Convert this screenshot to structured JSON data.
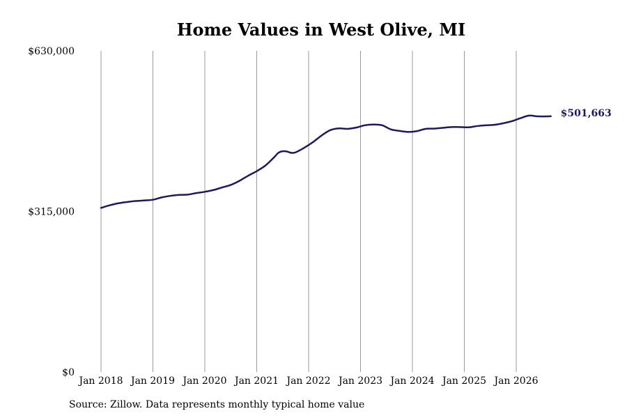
{
  "chart_data": {
    "type": "line",
    "title": "Home Values in West Olive, MI",
    "xlabel": "",
    "ylabel": "",
    "source_note": "Source: Zillow. Data represents monthly typical home value",
    "ylim": [
      0,
      630000
    ],
    "yticks": [
      {
        "value": 0,
        "label": "$0"
      },
      {
        "value": 315000,
        "label": "$315,000"
      },
      {
        "value": 630000,
        "label": "$630,000"
      }
    ],
    "xlim": [
      "2018-01",
      "2026-09"
    ],
    "xticks": [
      {
        "date": "2018-01",
        "label": "Jan 2018"
      },
      {
        "date": "2019-01",
        "label": "Jan 2019"
      },
      {
        "date": "2020-01",
        "label": "Jan 2020"
      },
      {
        "date": "2021-01",
        "label": "Jan 2021"
      },
      {
        "date": "2022-01",
        "label": "Jan 2022"
      },
      {
        "date": "2023-01",
        "label": "Jan 2023"
      },
      {
        "date": "2024-01",
        "label": "Jan 2024"
      },
      {
        "date": "2025-01",
        "label": "Jan 2025"
      },
      {
        "date": "2026-01",
        "label": "Jan 2026"
      }
    ],
    "vertical_grid": true,
    "line_color": "#1a1a5e",
    "grid_color": "#999999",
    "end_label": "$501,663",
    "series": [
      {
        "points": [
          [
            "2018-01",
            322000
          ],
          [
            "2018-03",
            327000
          ],
          [
            "2018-05",
            331000
          ],
          [
            "2018-07",
            333500
          ],
          [
            "2018-09",
            335500
          ],
          [
            "2018-11",
            336500
          ],
          [
            "2019-01",
            338000
          ],
          [
            "2019-03",
            342500
          ],
          [
            "2019-05",
            345500
          ],
          [
            "2019-07",
            347500
          ],
          [
            "2019-09",
            348000
          ],
          [
            "2019-11",
            351000
          ],
          [
            "2020-01",
            353500
          ],
          [
            "2020-03",
            357000
          ],
          [
            "2020-05",
            362000
          ],
          [
            "2020-07",
            367000
          ],
          [
            "2020-09",
            375000
          ],
          [
            "2020-11",
            385000
          ],
          [
            "2021-01",
            394000
          ],
          [
            "2021-03",
            405000
          ],
          [
            "2021-05",
            421000
          ],
          [
            "2021-06",
            430000
          ],
          [
            "2021-07",
            433000
          ],
          [
            "2021-08",
            432500
          ],
          [
            "2021-09",
            430000
          ],
          [
            "2021-10",
            431000
          ],
          [
            "2021-12",
            440000
          ],
          [
            "2022-02",
            451000
          ],
          [
            "2022-04",
            464000
          ],
          [
            "2022-06",
            474500
          ],
          [
            "2022-08",
            478000
          ],
          [
            "2022-10",
            477000
          ],
          [
            "2022-12",
            479500
          ],
          [
            "2023-02",
            484000
          ],
          [
            "2023-04",
            485500
          ],
          [
            "2023-06",
            484000
          ],
          [
            "2023-08",
            476000
          ],
          [
            "2023-10",
            473000
          ],
          [
            "2023-12",
            471000
          ],
          [
            "2024-02",
            472500
          ],
          [
            "2024-04",
            477000
          ],
          [
            "2024-06",
            477500
          ],
          [
            "2024-08",
            479000
          ],
          [
            "2024-10",
            480500
          ],
          [
            "2024-12",
            480500
          ],
          [
            "2025-02",
            480000
          ],
          [
            "2025-04",
            482500
          ],
          [
            "2025-06",
            484000
          ],
          [
            "2025-08",
            485000
          ],
          [
            "2025-10",
            488000
          ],
          [
            "2025-12",
            492000
          ],
          [
            "2026-02",
            498000
          ],
          [
            "2026-04",
            503000
          ],
          [
            "2026-06",
            501500
          ],
          [
            "2026-09",
            501663
          ]
        ]
      }
    ]
  }
}
